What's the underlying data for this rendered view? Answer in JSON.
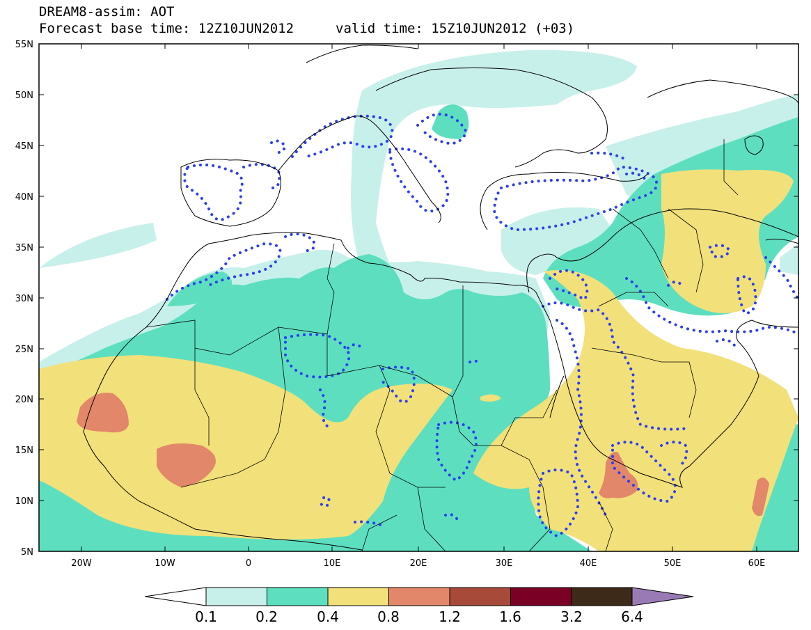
{
  "title": {
    "line1": "DREAM8-assim: AOT",
    "line2_base": "Forecast base time: 12Z10JUN2012",
    "line2_valid": "valid time: 15Z10JUN2012 (+03)"
  },
  "axes": {
    "lon_labels": [
      "20W",
      "10W",
      "0",
      "10E",
      "20E",
      "30E",
      "40E",
      "50E",
      "60E"
    ],
    "lat_labels": [
      "55N",
      "50N",
      "45N",
      "40N",
      "35N",
      "30N",
      "25N",
      "20N",
      "15N",
      "10N",
      "5N"
    ],
    "lon_range": [
      -25,
      65
    ],
    "lat_range": [
      5,
      55
    ]
  },
  "colorbar": {
    "labels": [
      "0.1",
      "0.2",
      "0.4",
      "0.8",
      "1.2",
      "1.6",
      "3.2",
      "6.4"
    ],
    "colors": [
      "#c8f0ea",
      "#5ddfbf",
      "#f2e07a",
      "#e2876a",
      "#a84a3a",
      "#7a0025",
      "#3e2a18",
      "#9a7ab5"
    ]
  },
  "colors": {
    "land_outline": "#000000",
    "dotted_contour": "#2a3ef0"
  }
}
